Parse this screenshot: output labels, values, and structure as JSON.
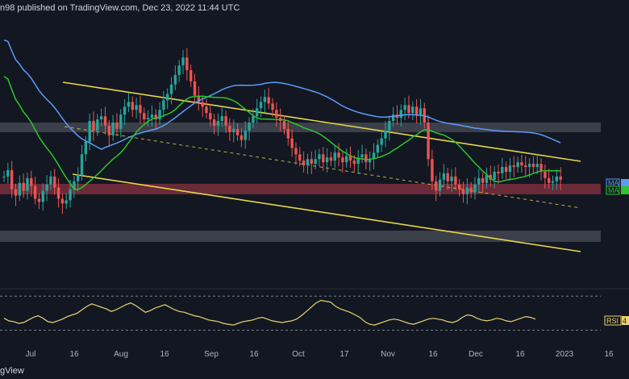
{
  "header": {
    "text": "n98 published on TradingView.com, Dec 23, 2022 11:44 UTC"
  },
  "footer": {
    "logo_text": "gView"
  },
  "colors": {
    "background": "#131722",
    "up": "#26a69a",
    "down": "#ef5350",
    "ma_blue": "#5b9cf6",
    "ma_green": "#2cc52c",
    "channel": "#e5d64a",
    "rsi": "#e8d36f",
    "zone_grey": "#5d606b",
    "zone_red": "#b23a48"
  },
  "badges": [
    {
      "label": "MA",
      "color": "#5b9cf6"
    },
    {
      "label": "MA",
      "color": "#2cc52c"
    }
  ],
  "rsi_badge": {
    "label": "RSI",
    "value": "4"
  },
  "chart_data": {
    "type": "candlestick",
    "x_tick_labels": [
      "Jul",
      "16",
      "Aug",
      "16",
      "Sep",
      "16",
      "Oct",
      "17",
      "Nov",
      "16",
      "Dec",
      "16",
      "2023",
      "16"
    ],
    "bars": 190,
    "close_series": [
      23,
      22,
      20,
      21,
      22,
      21,
      22,
      21,
      20,
      19,
      21,
      22,
      23,
      22,
      20,
      19,
      18,
      19,
      20,
      21,
      21,
      23,
      24,
      22,
      23,
      24,
      23,
      22,
      23,
      21,
      23,
      26,
      27,
      26,
      24,
      23,
      22,
      21,
      22,
      21,
      22,
      22,
      21,
      23,
      22,
      20,
      19,
      20,
      21,
      22,
      23,
      22,
      21,
      20,
      21,
      22,
      21,
      22,
      21,
      20,
      20,
      19,
      20,
      22,
      24,
      23,
      22,
      24,
      23,
      22,
      20,
      19,
      20,
      21,
      22,
      21,
      20,
      19,
      18,
      17,
      18,
      19,
      20,
      19,
      18,
      19,
      20,
      21,
      20,
      21,
      22,
      21,
      20,
      19,
      20,
      21,
      22,
      21,
      20,
      19,
      19,
      18,
      17,
      18,
      19,
      18,
      17,
      16,
      17,
      18,
      17,
      16,
      17,
      18,
      19,
      18,
      19,
      20,
      19,
      18,
      19,
      20,
      21,
      22,
      21,
      20,
      21,
      22,
      21,
      20,
      21,
      20,
      19,
      20,
      21,
      22,
      21,
      20,
      21,
      19,
      20,
      21,
      20,
      19,
      20,
      21,
      20,
      19,
      20,
      21,
      22,
      23,
      22,
      21,
      20,
      21,
      20,
      19,
      18,
      19,
      20,
      21,
      20,
      19,
      20,
      21,
      20,
      21,
      22,
      21,
      20,
      21,
      22,
      21,
      20,
      21,
      22,
      21,
      20,
      21,
      22,
      23,
      22,
      21,
      20,
      21,
      22,
      21,
      20,
      21
    ],
    "price_series": [
      20.4,
      20.8,
      19.6,
      19.2,
      20.0,
      19.5,
      20.3,
      19.8,
      19.0,
      18.8,
      19.5,
      19.9,
      20.4,
      19.7,
      19.0,
      18.7,
      18.9,
      19.6,
      20.1,
      20.5,
      21.8,
      22.6,
      23.9,
      23.3,
      24.0,
      24.2,
      23.6,
      23.0,
      23.8,
      23.4,
      24.3,
      24.8,
      25.1,
      24.6,
      24.9,
      24.4,
      24.0,
      24.1,
      24.3,
      24.0,
      24.6,
      25.2,
      25.6,
      26.2,
      26.8,
      27.4,
      27.9,
      27.1,
      26.4,
      25.5,
      25.1,
      24.8,
      24.4,
      24.0,
      23.6,
      23.9,
      24.2,
      23.6,
      23.2,
      23.4,
      23.0,
      22.7,
      23.3,
      23.8,
      24.2,
      24.7,
      25.1,
      25.4,
      25.0,
      24.6,
      24.1,
      23.9,
      23.4,
      22.8,
      22.2,
      21.8,
      21.4,
      21.1,
      21.5,
      21.2,
      21.5,
      21.8,
      21.3,
      21.6,
      21.4,
      21.9,
      21.6,
      21.3,
      21.7,
      21.4,
      21.2,
      21.6,
      21.8,
      21.3,
      21.5,
      21.9,
      22.4,
      22.8,
      23.3,
      23.9,
      24.3,
      24.1,
      24.6,
      24.9,
      24.4,
      24.8,
      24.3,
      24.7,
      23.8,
      21.5,
      20.1,
      19.5,
      20.2,
      20.6,
      20.1,
      20.4,
      19.9,
      19.6,
      19.3,
      19.7,
      19.4,
      19.9,
      20.3,
      20.0,
      20.5,
      20.2,
      20.7,
      20.6,
      21.0,
      20.7,
      21.1,
      21.0,
      21.3,
      21.1,
      21.0,
      21.2,
      21.0,
      21.2,
      20.7,
      20.3,
      20.0,
      20.1,
      20.4,
      20.2
    ],
    "moving_averages": [
      {
        "name": "MA",
        "color": "#5b9cf6"
      },
      {
        "name": "MA",
        "color": "#2cc52c"
      }
    ],
    "horizontal_zones": [
      "grey-top",
      "red-mid",
      "grey-bottom"
    ],
    "rsi": {
      "label": "RSI",
      "values": [
        44,
        41,
        40,
        38,
        39,
        42,
        45,
        47,
        44,
        40,
        39,
        41,
        43,
        46,
        48,
        50,
        54,
        58,
        61,
        59,
        57,
        55,
        52,
        54,
        57,
        60,
        62,
        59,
        55,
        51,
        53,
        56,
        58,
        60,
        57,
        54,
        52,
        51,
        49,
        47,
        46,
        44,
        42,
        41,
        40,
        38,
        37,
        36,
        38,
        40,
        41,
        42,
        44,
        45,
        43,
        41,
        40,
        39,
        40,
        41,
        43,
        47,
        52,
        57,
        62,
        65,
        64,
        63,
        58,
        55,
        53,
        51,
        48,
        45,
        40,
        37,
        36,
        38,
        40,
        42,
        43,
        42,
        40,
        38,
        37,
        39,
        41,
        43,
        44,
        43,
        42,
        40,
        39,
        41,
        45,
        48,
        47,
        44,
        42,
        41,
        42,
        44,
        43,
        41,
        40,
        42,
        44,
        46,
        45,
        43
      ]
    }
  }
}
